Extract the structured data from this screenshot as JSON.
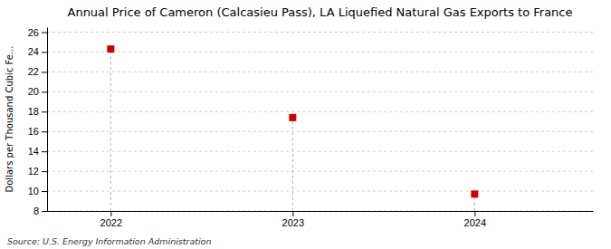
{
  "chart_data": {
    "type": "scatter",
    "title": "Annual Price of Cameron (Calcasieu Pass), LA Liquefied Natural Gas Exports to France",
    "y_label": "Dollars per Thousand Cubic Fe...",
    "source": "Source: U.S. Energy Information Administration",
    "x": [
      2022,
      2023,
      2024
    ],
    "values": [
      24.3,
      17.4,
      9.7
    ],
    "xlim": [
      2021.65,
      2024.65
    ],
    "ylim": [
      8,
      26.5
    ],
    "xticks": [
      2022,
      2023,
      2024
    ],
    "yticks": [
      8,
      10,
      12,
      14,
      16,
      18,
      20,
      22,
      24,
      26
    ],
    "grid": true,
    "color": "#cc0000",
    "marker": "square"
  }
}
